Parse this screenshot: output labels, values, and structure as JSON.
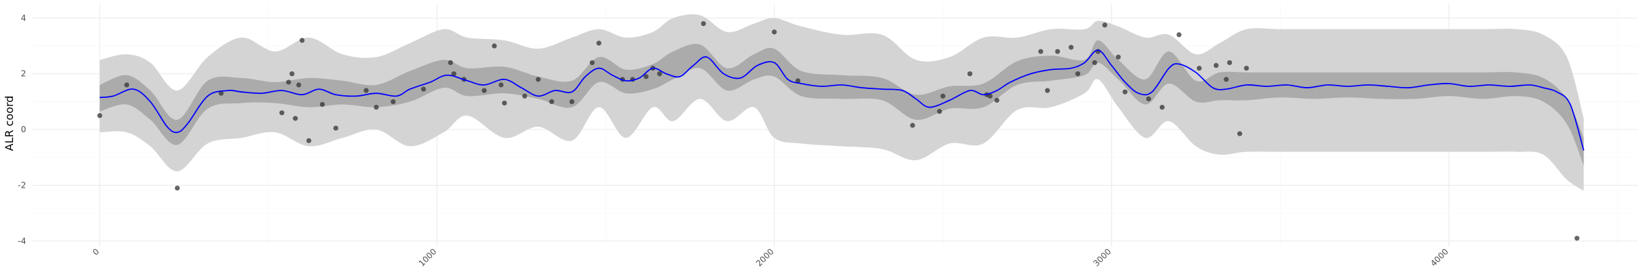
{
  "chart_data": {
    "type": "line",
    "title": "",
    "xlabel": "",
    "ylabel": "ALR coord",
    "xlim": [
      -200,
      4560
    ],
    "ylim": [
      -4.2,
      4.5
    ],
    "x_ticks": [
      0,
      1000,
      2000,
      3000,
      4000
    ],
    "x_tick_labels": [
      "0",
      "1000",
      "2000",
      "3000",
      "4000"
    ],
    "y_ticks": [
      -4,
      -2,
      0,
      2,
      4
    ],
    "y_tick_labels": [
      "-4",
      "-2",
      "0",
      "2",
      "4"
    ],
    "grid": true,
    "legend": "none",
    "colors": {
      "line": "#0000ff",
      "inner_band": "#ababab",
      "outer_band": "#d4d4d4",
      "points": "#333333",
      "grid_major": "#ebebeb",
      "grid_minor": "#f5f5f5"
    },
    "series": [
      {
        "type": "ribbon-outer",
        "x": [
          0,
          80,
          150,
          230,
          320,
          420,
          520,
          620,
          720,
          820,
          920,
          1020,
          1090,
          1200,
          1300,
          1400,
          1480,
          1560,
          1640,
          1700,
          1780,
          1860,
          1940,
          2000,
          2080,
          2200,
          2320,
          2420,
          2520,
          2620,
          2720,
          2820,
          2920,
          2960,
          3020,
          3100,
          3170,
          3250,
          3320,
          3400,
          3500,
          3600,
          3700,
          3800,
          3900,
          4000,
          4100,
          4200,
          4280,
          4350,
          4400
        ],
        "low": [
          -0.1,
          -0.1,
          -0.6,
          -1.5,
          -0.5,
          -0.3,
          -0.1,
          -0.6,
          -0.3,
          0,
          -0.6,
          -0.1,
          0.5,
          -0.3,
          0.1,
          -0.4,
          0.8,
          -0.3,
          0.8,
          0.3,
          1.1,
          0.3,
          0.8,
          -0.3,
          -0.5,
          -0.6,
          -0.7,
          -1.1,
          -0.5,
          -0.5,
          0.7,
          0.8,
          1.3,
          1.8,
          0.8,
          -0.3,
          0.3,
          -0.6,
          -0.9,
          -0.8,
          -0.8,
          -0.8,
          -0.8,
          -0.8,
          -0.8,
          -0.8,
          -0.8,
          -0.8,
          -0.9,
          -1.8,
          -2.2
        ],
        "high": [
          2.5,
          2.7,
          2.4,
          1.4,
          2.6,
          3.3,
          2.8,
          3.3,
          2.7,
          2.6,
          3.1,
          3.6,
          3.3,
          3.2,
          2.9,
          3.3,
          3.6,
          3.3,
          3.5,
          4.0,
          4.1,
          3.5,
          3.8,
          4.0,
          3.7,
          3.4,
          3.4,
          2.5,
          2.6,
          3.3,
          3.3,
          3.6,
          3.6,
          3.9,
          3.7,
          3.3,
          3.4,
          2.7,
          3.1,
          3.6,
          3.6,
          3.6,
          3.6,
          3.6,
          3.6,
          3.6,
          3.6,
          3.6,
          3.4,
          2.6,
          0.4
        ]
      },
      {
        "type": "ribbon-inner",
        "x": [
          0,
          80,
          150,
          230,
          320,
          420,
          520,
          620,
          720,
          820,
          920,
          1020,
          1090,
          1200,
          1300,
          1400,
          1480,
          1560,
          1640,
          1700,
          1780,
          1860,
          1940,
          2000,
          2080,
          2200,
          2320,
          2420,
          2520,
          2620,
          2720,
          2820,
          2920,
          2960,
          3020,
          3100,
          3170,
          3250,
          3320,
          3400,
          3500,
          3600,
          3700,
          3800,
          3900,
          4000,
          4100,
          4200,
          4280,
          4350,
          4400
        ],
        "low": [
          0.65,
          0.9,
          0.35,
          -0.55,
          0.75,
          0.95,
          0.95,
          0.8,
          0.9,
          0.8,
          1.0,
          1.5,
          1.2,
          1.3,
          1.1,
          0.8,
          1.7,
          1.3,
          1.45,
          1.8,
          2.2,
          1.4,
          1.8,
          1.9,
          1.2,
          1.1,
          1.05,
          0.35,
          0.75,
          0.8,
          1.6,
          1.75,
          1.95,
          2.4,
          1.8,
          0.9,
          1.65,
          1.0,
          1.05,
          1.05,
          1.15,
          1.1,
          1.15,
          1.1,
          1.1,
          1.2,
          1.1,
          1.2,
          1.0,
          0.2,
          -1.3
        ],
        "high": [
          1.6,
          1.95,
          1.4,
          0.35,
          1.75,
          1.85,
          1.7,
          1.85,
          1.75,
          1.6,
          2.1,
          2.5,
          2.2,
          2.25,
          1.9,
          1.75,
          2.6,
          2.15,
          2.35,
          2.8,
          3.05,
          2.2,
          2.7,
          2.9,
          2.1,
          1.95,
          1.85,
          1.25,
          1.55,
          1.65,
          2.45,
          2.65,
          2.5,
          3.2,
          2.5,
          1.8,
          2.8,
          1.75,
          2.05,
          2.05,
          2.05,
          2.05,
          2.05,
          2.05,
          2.05,
          2.05,
          2.05,
          2.05,
          1.85,
          1.1,
          -0.3
        ]
      },
      {
        "type": "line",
        "x": [
          0,
          40,
          100,
          150,
          200,
          230,
          260,
          320,
          380,
          420,
          480,
          540,
          600,
          650,
          700,
          760,
          820,
          880,
          920,
          980,
          1030,
          1090,
          1140,
          1200,
          1250,
          1300,
          1350,
          1400,
          1440,
          1480,
          1520,
          1560,
          1600,
          1640,
          1680,
          1720,
          1760,
          1800,
          1850,
          1900,
          1950,
          2000,
          2040,
          2080,
          2140,
          2200,
          2260,
          2320,
          2380,
          2420,
          2460,
          2520,
          2580,
          2620,
          2660,
          2700,
          2760,
          2820,
          2880,
          2920,
          2960,
          3000,
          3040,
          3080,
          3120,
          3170,
          3200,
          3250,
          3300,
          3340,
          3400,
          3460,
          3520,
          3580,
          3640,
          3700,
          3760,
          3820,
          3880,
          3940,
          4000,
          4060,
          4120,
          4180,
          4240,
          4280,
          4320,
          4360,
          4400
        ],
        "y": [
          1.15,
          1.2,
          1.45,
          1.0,
          0.1,
          -0.1,
          0.2,
          1.2,
          1.4,
          1.35,
          1.3,
          1.4,
          1.25,
          1.45,
          1.25,
          1.2,
          1.3,
          1.2,
          1.45,
          1.7,
          1.95,
          1.75,
          1.6,
          1.8,
          1.5,
          1.2,
          1.4,
          1.35,
          1.9,
          2.2,
          1.95,
          1.75,
          1.85,
          2.2,
          2.0,
          1.9,
          2.3,
          2.6,
          2.0,
          1.85,
          2.3,
          2.4,
          1.8,
          1.65,
          1.55,
          1.6,
          1.5,
          1.45,
          1.4,
          1.1,
          0.8,
          1.05,
          1.4,
          1.25,
          1.4,
          1.7,
          2.0,
          2.15,
          2.2,
          2.4,
          2.85,
          2.3,
          1.7,
          1.3,
          1.35,
          2.2,
          2.35,
          2.05,
          1.5,
          1.45,
          1.6,
          1.55,
          1.6,
          1.5,
          1.6,
          1.55,
          1.6,
          1.55,
          1.5,
          1.6,
          1.65,
          1.55,
          1.6,
          1.55,
          1.6,
          1.5,
          1.35,
          0.9,
          -0.75
        ]
      }
    ],
    "points": {
      "x": [
        0,
        80,
        230,
        360,
        540,
        560,
        570,
        580,
        590,
        600,
        620,
        660,
        700,
        790,
        820,
        870,
        960,
        1040,
        1050,
        1080,
        1140,
        1170,
        1190,
        1200,
        1260,
        1300,
        1340,
        1400,
        1460,
        1480,
        1550,
        1580,
        1620,
        1640,
        1660,
        1790,
        2000,
        2070,
        2410,
        2490,
        2500,
        2580,
        2630,
        2640,
        2660,
        2790,
        2810,
        2840,
        2880,
        2900,
        2950,
        2960,
        2980,
        3020,
        3040,
        3110,
        3150,
        3200,
        3260,
        3310,
        3340,
        3350,
        3380,
        3400,
        4380
      ],
      "y": [
        0.5,
        1.6,
        -2.1,
        1.3,
        0.6,
        1.7,
        2.0,
        0.4,
        1.6,
        3.2,
        -0.4,
        0.9,
        0.05,
        1.4,
        0.8,
        1.0,
        1.45,
        2.4,
        2.0,
        1.8,
        1.4,
        3.0,
        1.6,
        0.95,
        1.2,
        1.8,
        1.0,
        1.0,
        2.4,
        3.1,
        1.8,
        1.8,
        1.9,
        2.2,
        2.0,
        3.8,
        3.5,
        1.75,
        0.15,
        0.65,
        1.2,
        2.0,
        1.25,
        1.2,
        1.05,
        2.8,
        1.4,
        2.8,
        2.95,
        2.0,
        2.4,
        2.8,
        3.75,
        2.6,
        1.35,
        1.1,
        0.8,
        3.4,
        2.2,
        2.3,
        1.8,
        2.4,
        -0.15,
        2.2,
        -3.9
      ]
    }
  }
}
